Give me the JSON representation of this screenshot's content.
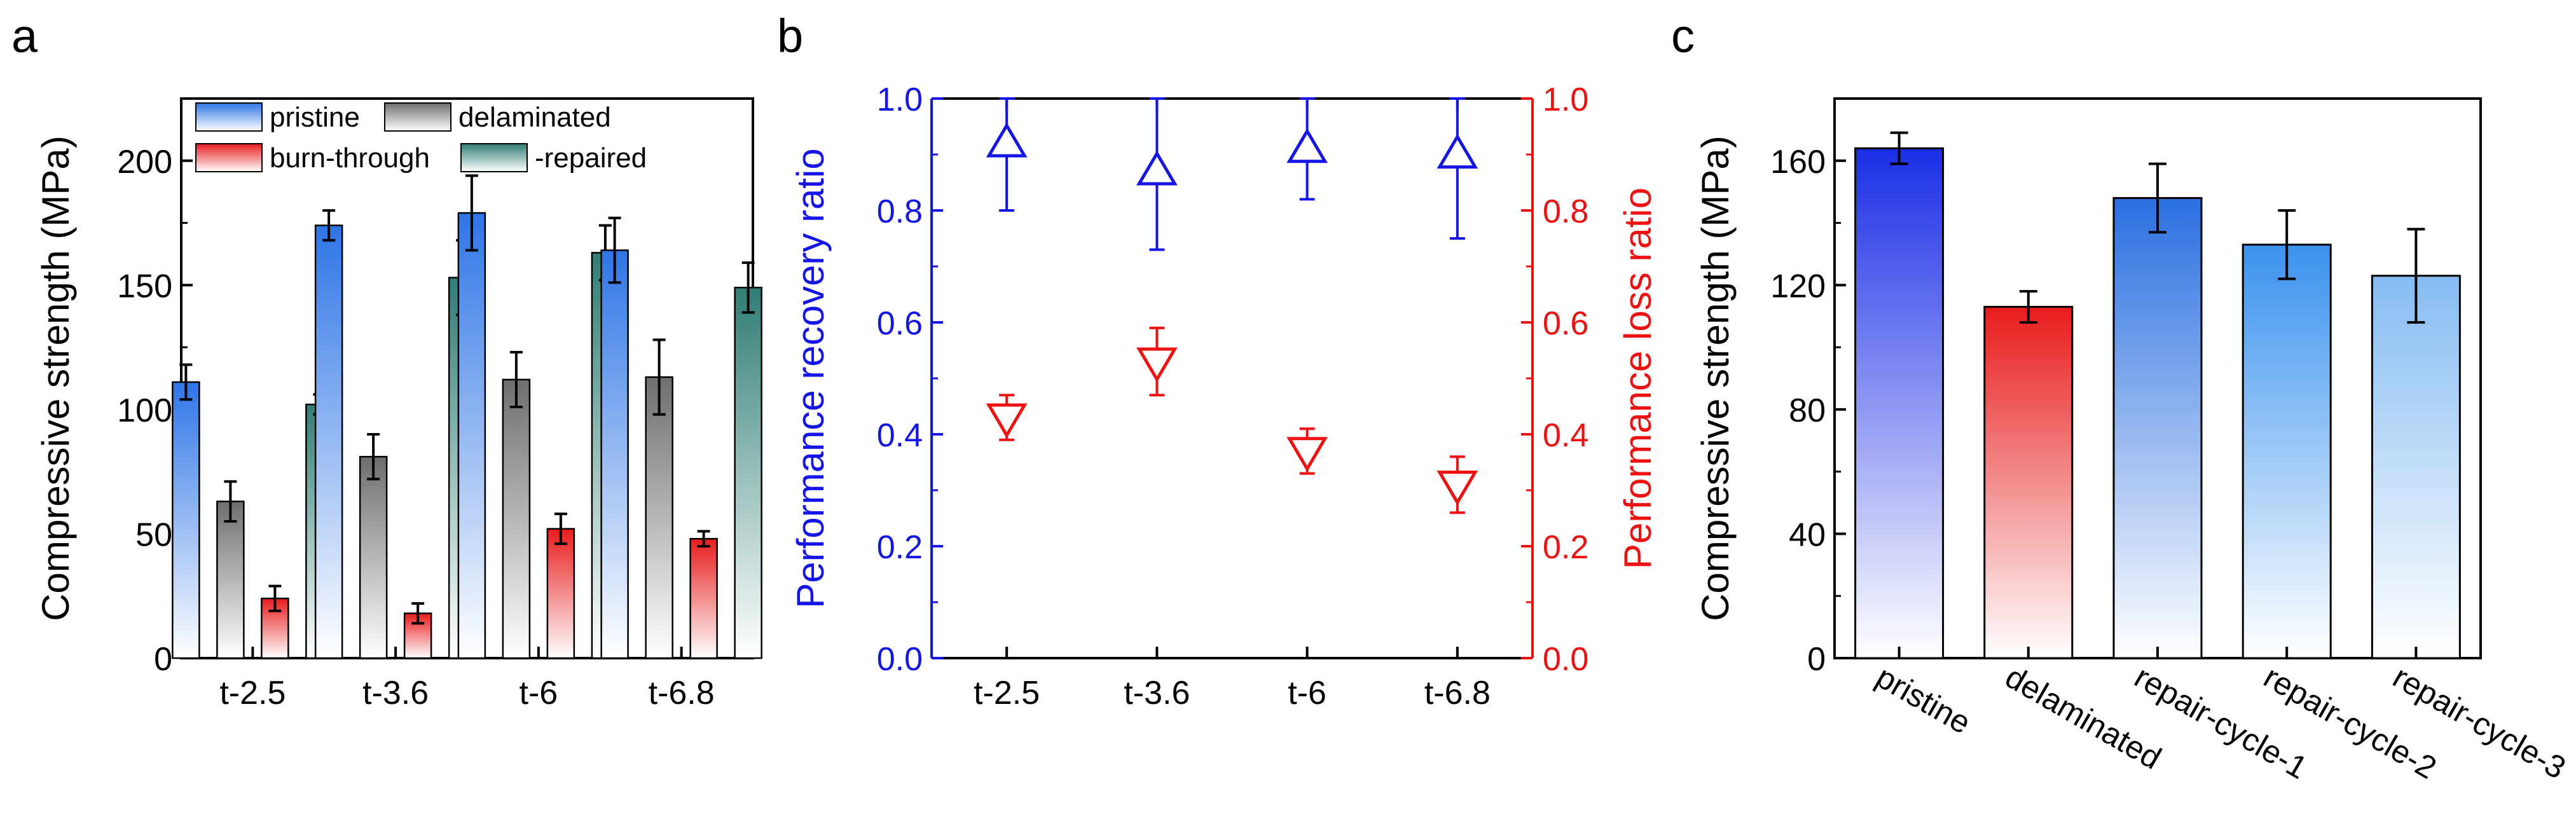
{
  "chart_data": [
    {
      "panel": "a",
      "type": "bar",
      "ylabel": "Compressive strength (MPa)",
      "ylim": [
        0,
        225
      ],
      "yticks": [
        "0",
        "50",
        "100",
        "150",
        "200"
      ],
      "categories": [
        "t-2.5",
        "t-3.6",
        "t-6",
        "t-6.8"
      ],
      "legend_position": "top-left",
      "series": [
        {
          "name": "pristine",
          "values": [
            111,
            174,
            179,
            164
          ],
          "errors": [
            7,
            6,
            15,
            13
          ],
          "color": "#2e75e6"
        },
        {
          "name": "delaminated",
          "values": [
            63,
            81,
            112,
            113
          ],
          "errors": [
            8,
            9,
            11,
            15
          ],
          "color": "#6e6e6e"
        },
        {
          "name": "burn-through",
          "values": [
            24,
            18,
            52,
            48
          ],
          "errors": [
            5,
            4,
            6,
            3
          ],
          "color": "#e81c1c"
        },
        {
          "name": "-repaired",
          "values": [
            102,
            153,
            163,
            149
          ],
          "errors": [
            4,
            15,
            11,
            10
          ],
          "color": "#2f7d74"
        }
      ]
    },
    {
      "panel": "b",
      "type": "scatter",
      "categories": [
        "t-2.5",
        "t-3.6",
        "t-6",
        "t-6.8"
      ],
      "ylabel_left": "Performance recovery ratio",
      "ylabel_right": "Performance loss ratio",
      "ylim_left": [
        0,
        1
      ],
      "ylim_right": [
        0,
        1
      ],
      "yticks_left": [
        "0.0",
        "0.2",
        "0.4",
        "0.6",
        "0.8",
        "1.0"
      ],
      "yticks_right": [
        "0.0",
        "0.2",
        "0.4",
        "0.6",
        "0.8",
        "1.0"
      ],
      "series": [
        {
          "axis": "left",
          "marker": "triangle-up",
          "color": "#1515e8",
          "values": [
            0.92,
            0.87,
            0.91,
            0.9
          ],
          "errors": [
            0.12,
            0.14,
            0.09,
            0.15
          ]
        },
        {
          "axis": "right",
          "marker": "triangle-down",
          "color": "#ee1111",
          "values": [
            0.43,
            0.53,
            0.37,
            0.31
          ],
          "errors": [
            0.04,
            0.06,
            0.04,
            0.05
          ]
        }
      ]
    },
    {
      "panel": "c",
      "type": "bar",
      "ylabel": "Compressive strength (MPa)",
      "ylim": [
        0,
        180
      ],
      "yticks": [
        "0",
        "40",
        "80",
        "120",
        "160"
      ],
      "categories": [
        "pristine",
        "delaminated",
        "repair-cycle-1",
        "repair-cycle-2",
        "repair-cycle-3"
      ],
      "values": [
        164,
        113,
        148,
        133,
        123
      ],
      "errors": [
        5,
        5,
        11,
        11,
        15
      ],
      "colors": [
        "#1a2ee6",
        "#e81c1c",
        "#2a6fe0",
        "#3a92ee",
        "#86bcf2"
      ]
    }
  ]
}
